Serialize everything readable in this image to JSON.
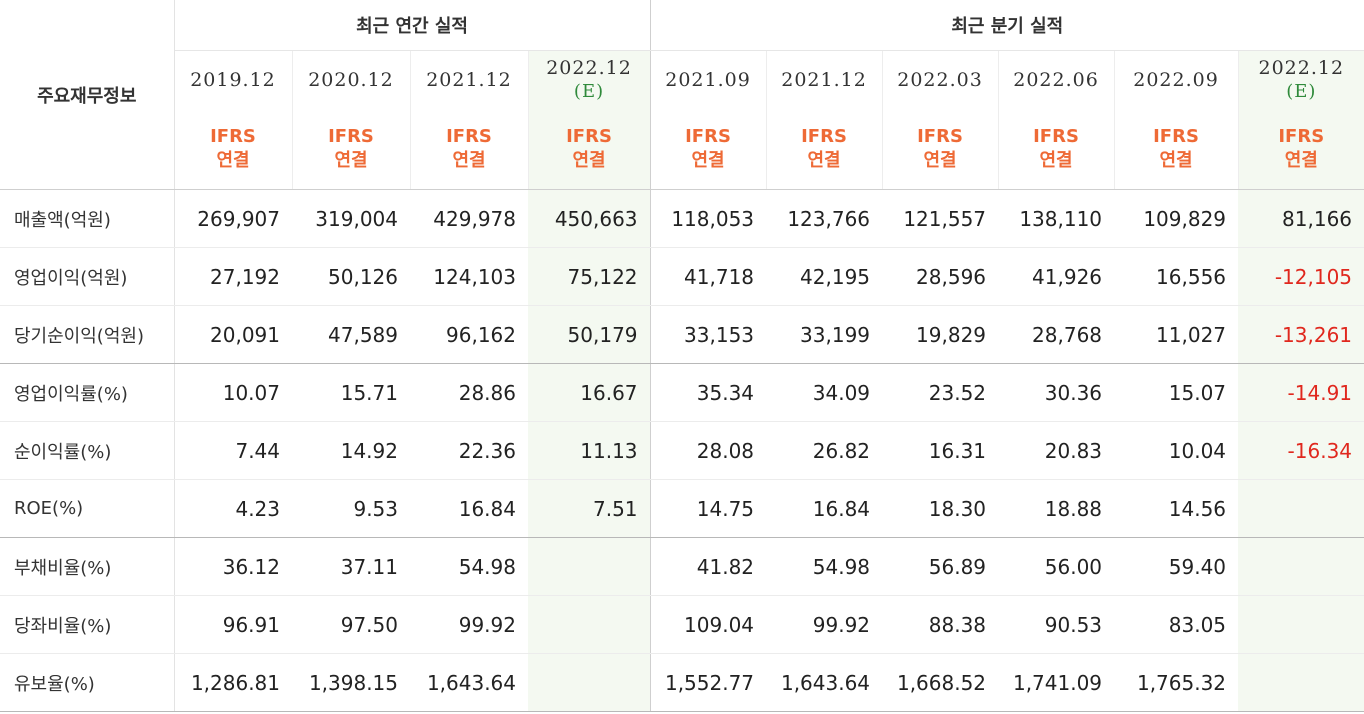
{
  "table": {
    "title": "주요재무정보",
    "groups": {
      "annual": "최근 연간 실적",
      "quarterly": "최근 분기 실적"
    },
    "ifrs_line1": "IFRS",
    "ifrs_line2": "연결",
    "annual_dates": [
      {
        "date": "2019.12",
        "est": ""
      },
      {
        "date": "2020.12",
        "est": ""
      },
      {
        "date": "2021.12",
        "est": ""
      },
      {
        "date": "2022.12",
        "est": "(E)"
      }
    ],
    "quarterly_dates": [
      {
        "date": "2021.09",
        "est": ""
      },
      {
        "date": "2021.12",
        "est": ""
      },
      {
        "date": "2022.03",
        "est": ""
      },
      {
        "date": "2022.06",
        "est": ""
      },
      {
        "date": "2022.09",
        "est": ""
      },
      {
        "date": "2022.12",
        "est": "(E)"
      }
    ],
    "rows": [
      {
        "label": "매출액(억원)",
        "annual": [
          "269,907",
          "319,004",
          "429,978",
          "450,663"
        ],
        "quarterly": [
          "118,053",
          "123,766",
          "121,557",
          "138,110",
          "109,829",
          "81,166"
        ]
      },
      {
        "label": "영업이익(억원)",
        "annual": [
          "27,192",
          "50,126",
          "124,103",
          "75,122"
        ],
        "quarterly": [
          "41,718",
          "42,195",
          "28,596",
          "41,926",
          "16,556",
          "-12,105"
        ]
      },
      {
        "label": "당기순이익(억원)",
        "annual": [
          "20,091",
          "47,589",
          "96,162",
          "50,179"
        ],
        "quarterly": [
          "33,153",
          "33,199",
          "19,829",
          "28,768",
          "11,027",
          "-13,261"
        ]
      },
      {
        "label": "영업이익률(%)",
        "annual": [
          "10.07",
          "15.71",
          "28.86",
          "16.67"
        ],
        "quarterly": [
          "35.34",
          "34.09",
          "23.52",
          "30.36",
          "15.07",
          "-14.91"
        ]
      },
      {
        "label": "순이익률(%)",
        "annual": [
          "7.44",
          "14.92",
          "22.36",
          "11.13"
        ],
        "quarterly": [
          "28.08",
          "26.82",
          "16.31",
          "20.83",
          "10.04",
          "-16.34"
        ]
      },
      {
        "label": "ROE(%)",
        "annual": [
          "4.23",
          "9.53",
          "16.84",
          "7.51"
        ],
        "quarterly": [
          "14.75",
          "16.84",
          "18.30",
          "18.88",
          "14.56",
          ""
        ]
      },
      {
        "label": "부채비율(%)",
        "annual": [
          "36.12",
          "37.11",
          "54.98",
          ""
        ],
        "quarterly": [
          "41.82",
          "54.98",
          "56.89",
          "56.00",
          "59.40",
          ""
        ]
      },
      {
        "label": "당좌비율(%)",
        "annual": [
          "96.91",
          "97.50",
          "99.92",
          ""
        ],
        "quarterly": [
          "109.04",
          "99.92",
          "88.38",
          "90.53",
          "83.05",
          ""
        ]
      },
      {
        "label": "유보율(%)",
        "annual": [
          "1,286.81",
          "1,398.15",
          "1,643.64",
          ""
        ],
        "quarterly": [
          "1,552.77",
          "1,643.64",
          "1,668.52",
          "1,741.09",
          "1,765.32",
          ""
        ]
      }
    ],
    "colors": {
      "ifrs": "#ee6a36",
      "estimate_text": "#2f8a3b",
      "estimate_bg": "#f4f9f1",
      "negative": "#e0281e"
    }
  }
}
